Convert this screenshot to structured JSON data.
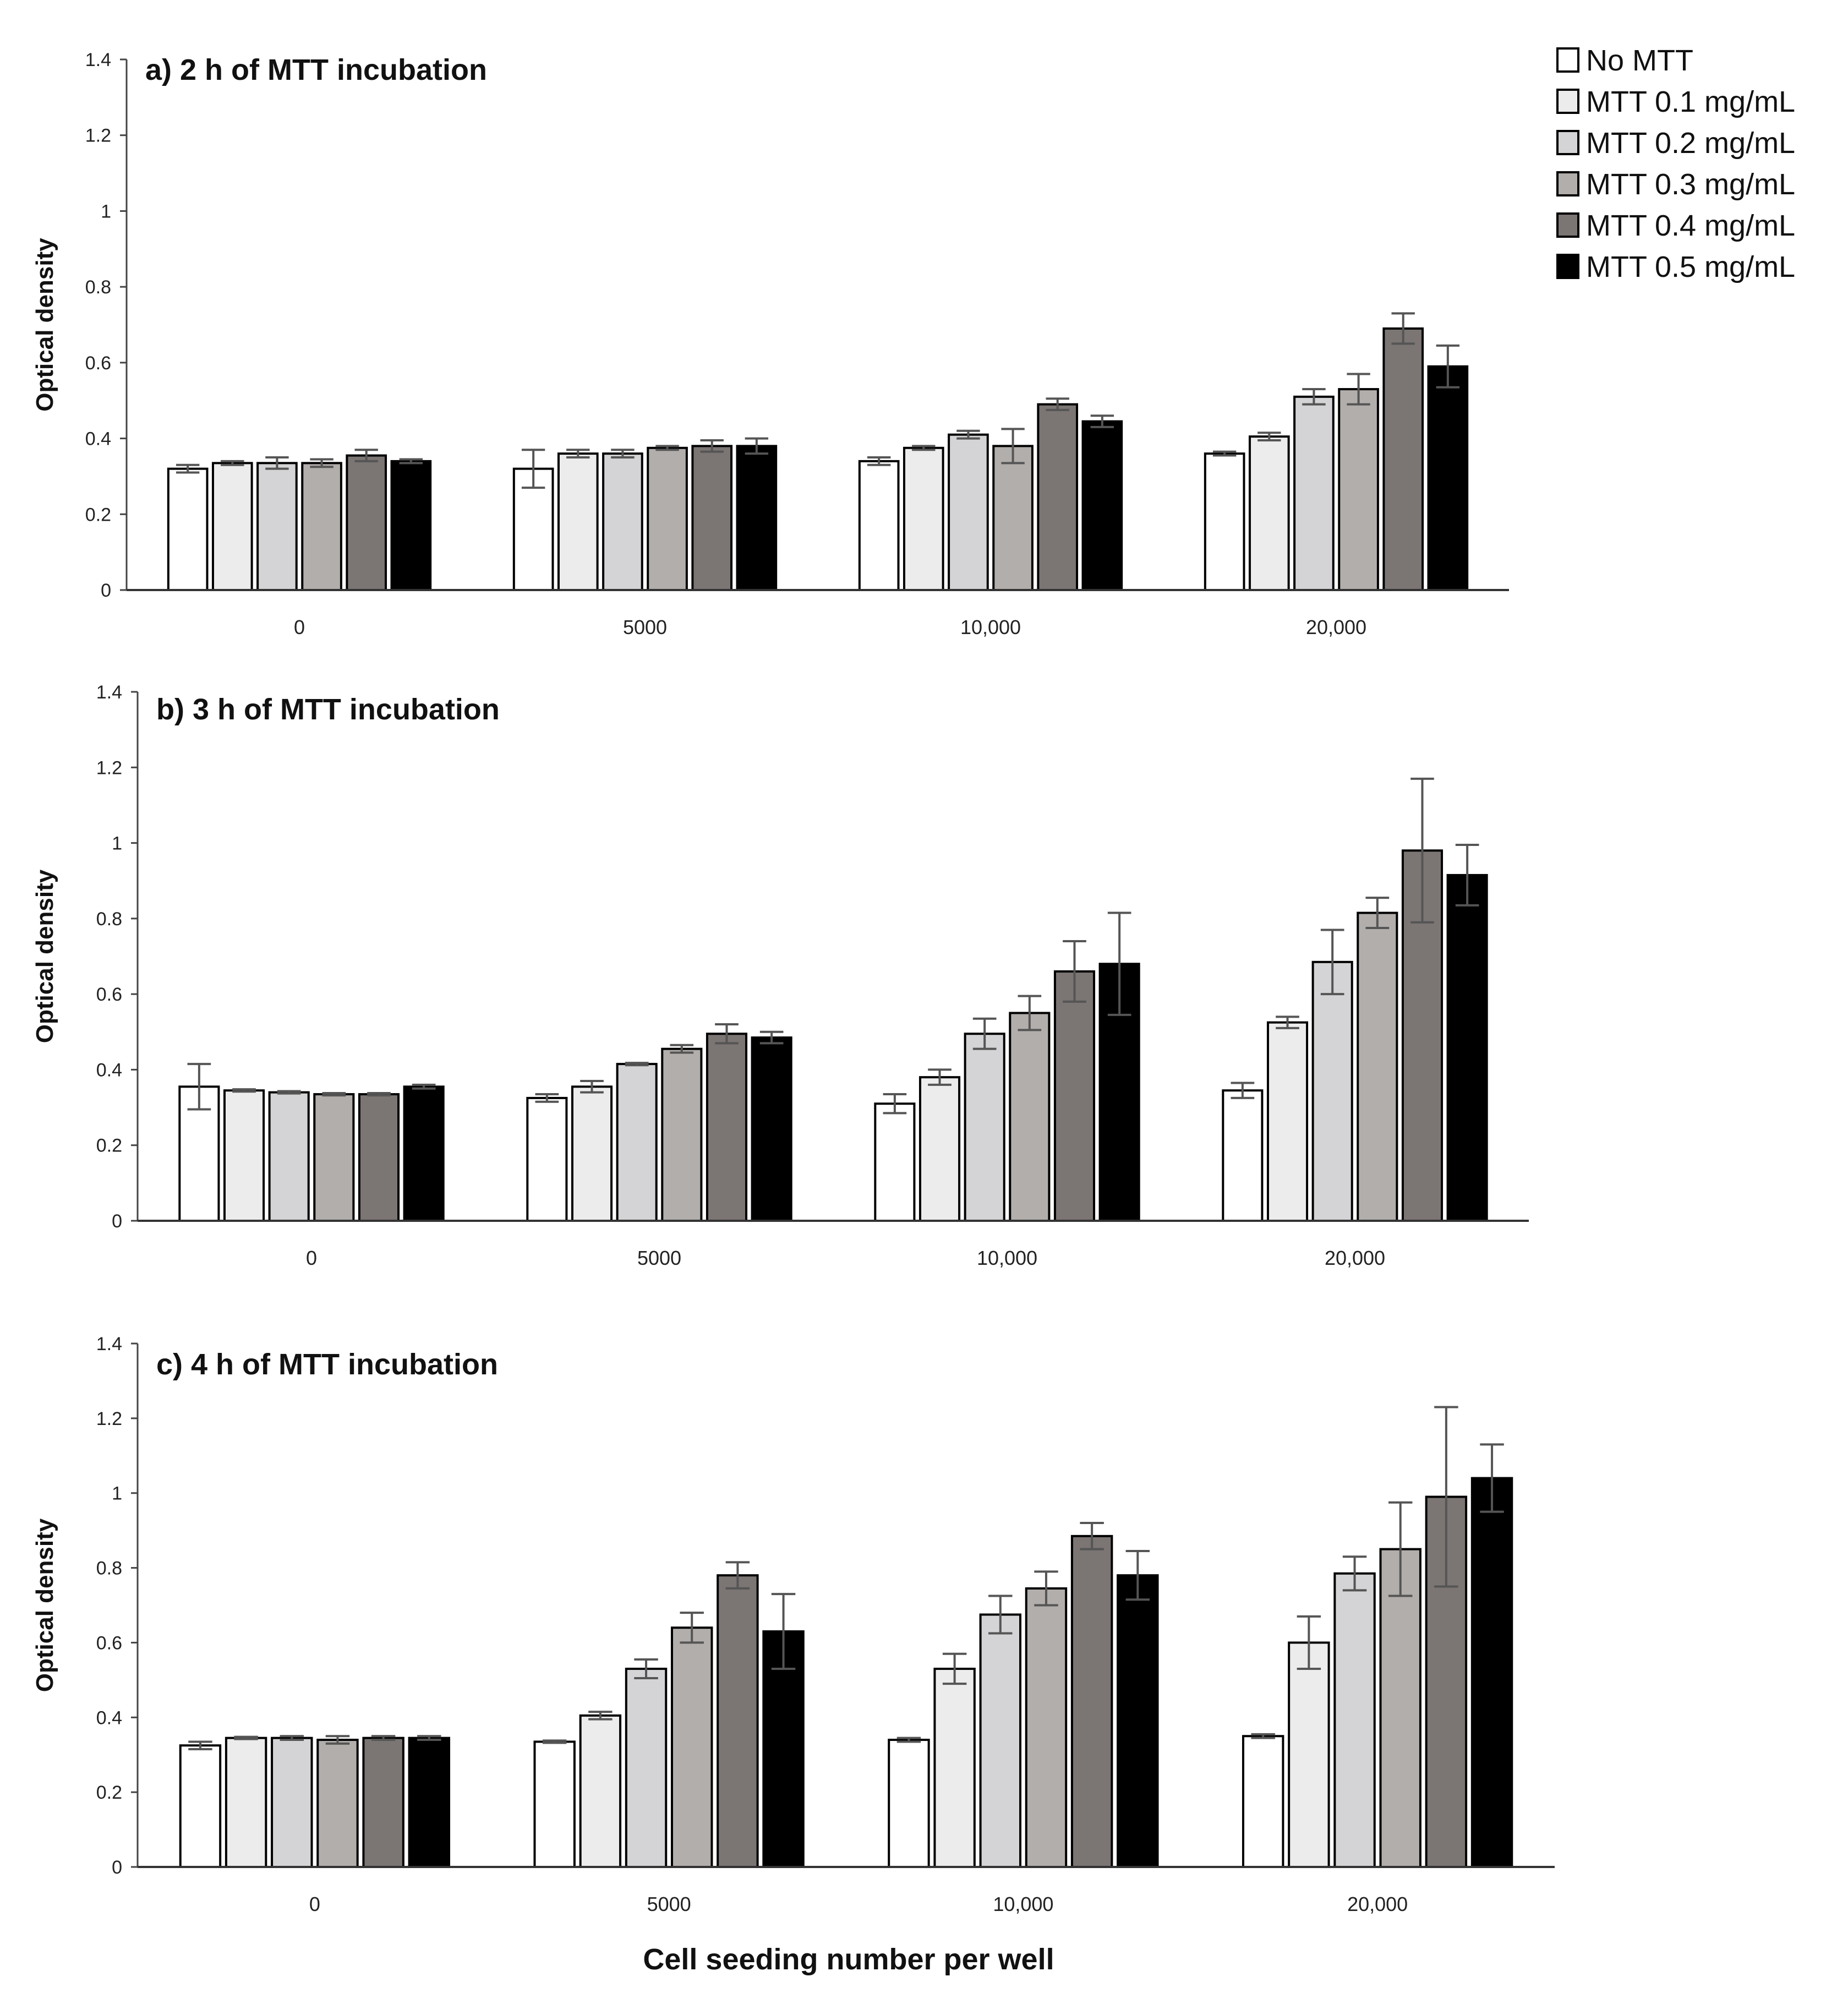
{
  "legend": [
    {
      "name": "No MTT",
      "color": "#ffffff"
    },
    {
      "name": "MTT 0.1 mg/mL",
      "color": "#ececec"
    },
    {
      "name": "MTT 0.2 mg/mL",
      "color": "#d4d3d5"
    },
    {
      "name": "MTT 0.3 mg/mL",
      "color": "#b2aeac"
    },
    {
      "name": "MTT 0.4 mg/mL",
      "color": "#7b7574"
    },
    {
      "name": "MTT 0.5 mg/mL",
      "color": "#000000"
    }
  ],
  "xlabel": "Cell seeding number per well",
  "chart_data": [
    {
      "type": "bar",
      "title": "a) 2 h of MTT incubation",
      "ylabel": "Optical density",
      "ylim": [
        0,
        1.4
      ],
      "yticks": [
        "0",
        "0.2",
        "0.4",
        "0.6",
        "0.8",
        "1",
        "1.2",
        "1.4"
      ],
      "categories": [
        "0",
        "5000",
        "10,000",
        "20,000"
      ],
      "series": [
        {
          "name": "No MTT",
          "values": [
            0.32,
            0.32,
            0.34,
            0.36
          ],
          "errors": [
            0.01,
            0.05,
            0.01,
            0.005
          ]
        },
        {
          "name": "MTT 0.1 mg/mL",
          "values": [
            0.335,
            0.36,
            0.375,
            0.405
          ],
          "errors": [
            0.005,
            0.01,
            0.005,
            0.01
          ]
        },
        {
          "name": "MTT 0.2 mg/mL",
          "values": [
            0.335,
            0.36,
            0.41,
            0.51
          ],
          "errors": [
            0.015,
            0.01,
            0.01,
            0.02
          ]
        },
        {
          "name": "MTT 0.3 mg/mL",
          "values": [
            0.335,
            0.375,
            0.38,
            0.53
          ],
          "errors": [
            0.01,
            0.005,
            0.045,
            0.04
          ]
        },
        {
          "name": "MTT 0.4 mg/mL",
          "values": [
            0.355,
            0.38,
            0.49,
            0.69
          ],
          "errors": [
            0.015,
            0.015,
            0.015,
            0.04
          ]
        },
        {
          "name": "MTT 0.5 mg/mL",
          "values": [
            0.34,
            0.38,
            0.445,
            0.59
          ],
          "errors": [
            0.005,
            0.02,
            0.015,
            0.055
          ]
        }
      ]
    },
    {
      "type": "bar",
      "title": "b) 3 h of MTT incubation",
      "ylabel": "Optical density",
      "ylim": [
        0,
        1.4
      ],
      "yticks": [
        "0",
        "0.2",
        "0.4",
        "0.6",
        "0.8",
        "1",
        "1.2",
        "1.4"
      ],
      "categories": [
        "0",
        "5000",
        "10,000",
        "20,000"
      ],
      "series": [
        {
          "name": "No MTT",
          "values": [
            0.355,
            0.325,
            0.31,
            0.345
          ],
          "errors": [
            0.06,
            0.01,
            0.025,
            0.02
          ]
        },
        {
          "name": "MTT 0.1 mg/mL",
          "values": [
            0.345,
            0.355,
            0.38,
            0.525
          ],
          "errors": [
            0.003,
            0.015,
            0.02,
            0.015
          ]
        },
        {
          "name": "MTT 0.2 mg/mL",
          "values": [
            0.34,
            0.415,
            0.495,
            0.685
          ],
          "errors": [
            0.003,
            0.003,
            0.04,
            0.085
          ]
        },
        {
          "name": "MTT 0.3 mg/mL",
          "values": [
            0.335,
            0.455,
            0.55,
            0.815
          ],
          "errors": [
            0.003,
            0.01,
            0.045,
            0.04
          ]
        },
        {
          "name": "MTT 0.4 mg/mL",
          "values": [
            0.335,
            0.495,
            0.66,
            0.98
          ],
          "errors": [
            0.003,
            0.025,
            0.08,
            0.19
          ]
        },
        {
          "name": "MTT 0.5 mg/mL",
          "values": [
            0.355,
            0.485,
            0.68,
            0.915
          ],
          "errors": [
            0.005,
            0.015,
            0.135,
            0.08
          ]
        }
      ]
    },
    {
      "type": "bar",
      "title": "c) 4 h of MTT incubation",
      "ylabel": "Optical density",
      "ylim": [
        0,
        1.4
      ],
      "yticks": [
        "0",
        "0.2",
        "0.4",
        "0.6",
        "0.8",
        "1",
        "1.2",
        "1.4"
      ],
      "categories": [
        "0",
        "5000",
        "10,000",
        "20,000"
      ],
      "series": [
        {
          "name": "No MTT",
          "values": [
            0.325,
            0.335,
            0.34,
            0.35
          ],
          "errors": [
            0.01,
            0.003,
            0.005,
            0.005
          ]
        },
        {
          "name": "MTT 0.1 mg/mL",
          "values": [
            0.345,
            0.405,
            0.53,
            0.6
          ],
          "errors": [
            0.003,
            0.01,
            0.04,
            0.07
          ]
        },
        {
          "name": "MTT 0.2 mg/mL",
          "values": [
            0.345,
            0.53,
            0.675,
            0.785
          ],
          "errors": [
            0.005,
            0.025,
            0.05,
            0.045
          ]
        },
        {
          "name": "MTT 0.3 mg/mL",
          "values": [
            0.34,
            0.64,
            0.745,
            0.85
          ],
          "errors": [
            0.01,
            0.04,
            0.045,
            0.125
          ]
        },
        {
          "name": "MTT 0.4 mg/mL",
          "values": [
            0.345,
            0.78,
            0.885,
            0.99
          ],
          "errors": [
            0.005,
            0.035,
            0.035,
            0.24
          ]
        },
        {
          "name": "MTT 0.5 mg/mL",
          "values": [
            0.345,
            0.63,
            0.78,
            1.04
          ],
          "errors": [
            0.005,
            0.1,
            0.065,
            0.09
          ]
        }
      ]
    }
  ]
}
